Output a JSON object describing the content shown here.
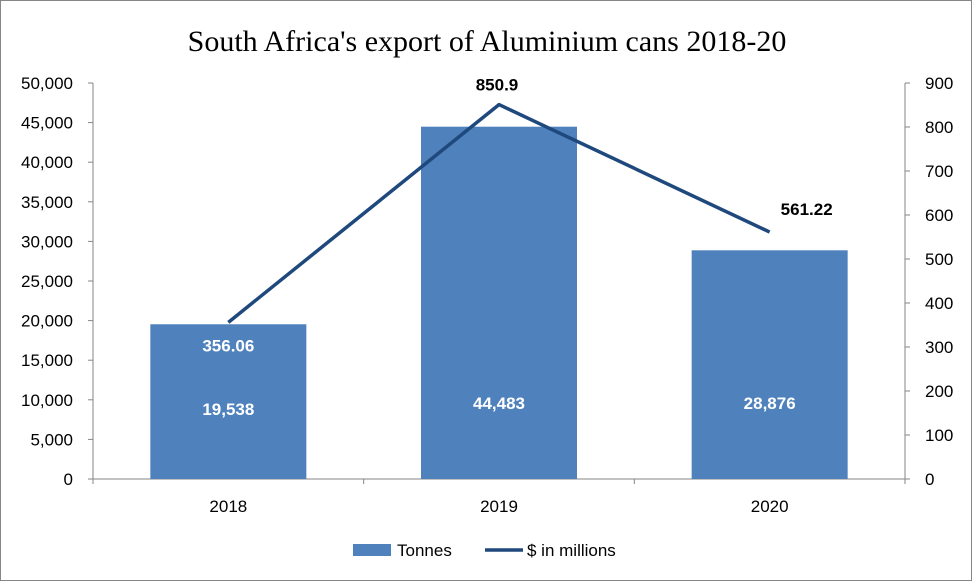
{
  "chart_data": {
    "type": "bar",
    "title": "South Africa's export of Aluminium cans 2018-20",
    "categories": [
      "2018",
      "2019",
      "2020"
    ],
    "series": [
      {
        "name": "Tonnes",
        "type": "bar",
        "axis": "left",
        "values": [
          19538,
          44483,
          28876
        ],
        "labels": [
          "19,538",
          "44,483",
          "28,876"
        ],
        "color": "#4f81bd",
        "label_color": "#ffffff"
      },
      {
        "name": "$ in millions",
        "type": "line",
        "axis": "right",
        "values": [
          356.06,
          850.9,
          561.22
        ],
        "labels": [
          "356.06",
          "850.9",
          "561.22"
        ],
        "color": "#1f497d",
        "label_colors": [
          "#ffffff",
          "#000000",
          "#000000"
        ]
      }
    ],
    "y_left": {
      "ylim": [
        0,
        50000
      ],
      "ticks": [
        "0",
        "5,000",
        "10,000",
        "15,000",
        "20,000",
        "25,000",
        "30,000",
        "35,000",
        "40,000",
        "45,000",
        "50,000"
      ]
    },
    "y_right": {
      "ylim": [
        0,
        900
      ],
      "ticks": [
        "0",
        "100",
        "200",
        "300",
        "400",
        "500",
        "600",
        "700",
        "800",
        "900"
      ]
    },
    "grid": false,
    "legend": "bottom"
  }
}
